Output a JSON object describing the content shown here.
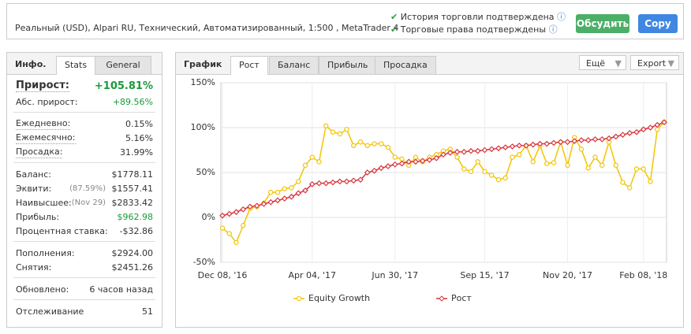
{
  "header": {
    "account_line": "Реальный (USD), Alpari RU, Технический, Автоматизированный, 1:500 , MetaTrader 4",
    "checks": [
      "История торговли подтверждена",
      "Торговые права подтверждены"
    ],
    "buttons": [
      "Обсудить",
      "Copy"
    ]
  },
  "info": {
    "tabs": [
      "Инфо.",
      "Stats",
      "General"
    ],
    "sections": [
      [
        {
          "label": "Прирост:",
          "value": "+105.81%"
        },
        {
          "label": "Абс. прирост:",
          "value": "+89.56%"
        }
      ],
      [
        {
          "label": "Ежедневно:",
          "value": "0.15%"
        },
        {
          "label": "Ежемесячно:",
          "value": "5.16%"
        },
        {
          "label": "Просадка:",
          "value": "31.99%"
        }
      ],
      [
        {
          "label": "Баланс:",
          "value": "$1778.11"
        },
        {
          "label": "Эквити:",
          "note": "(87.59%)",
          "value": "$1557.41"
        },
        {
          "label": "Наивысшее:",
          "note": "(Nov 29)",
          "value": "$2833.42"
        },
        {
          "label": "Прибыль:",
          "value": "$962.98"
        },
        {
          "label": "Процентная ставка:",
          "value": "-$32.86"
        }
      ],
      [
        {
          "label": "Пополнения:",
          "value": "$2924.00"
        },
        {
          "label": "Снятия:",
          "value": "$2451.26"
        }
      ],
      [
        {
          "label": "Обновлено:",
          "value": "6 часов назад"
        }
      ],
      [
        {
          "label": "Отслеживание",
          "value": "51"
        }
      ]
    ]
  },
  "chart_panel": {
    "tabs": [
      "График",
      "Рост",
      "Баланс",
      "Прибыль",
      "Просадка"
    ],
    "menus": [
      "Ещё",
      "Export"
    ]
  },
  "chart_data": {
    "type": "line",
    "categories": [
      "Dec 08, '16",
      null,
      null,
      null,
      null,
      null,
      null,
      null,
      null,
      null,
      null,
      null,
      null,
      "Apr 04, '17",
      null,
      null,
      null,
      null,
      null,
      null,
      null,
      null,
      null,
      null,
      null,
      "Jun 30, '17",
      null,
      null,
      null,
      null,
      null,
      null,
      null,
      null,
      null,
      null,
      null,
      null,
      "Sep 15, '17",
      null,
      null,
      null,
      null,
      null,
      null,
      null,
      null,
      null,
      null,
      null,
      "Nov 20, '17",
      null,
      null,
      null,
      null,
      null,
      null,
      null,
      null,
      null,
      null,
      "Feb 08, '18",
      null,
      null,
      null
    ],
    "series": [
      {
        "name": "Equity Growth",
        "color": "#f2c500",
        "values": [
          -12,
          -18,
          -28,
          -9,
          10,
          12,
          16,
          28,
          28,
          32,
          33,
          40,
          58,
          67,
          62,
          102,
          95,
          93,
          98,
          80,
          84,
          80,
          82,
          82,
          78,
          67,
          65,
          58,
          67,
          62,
          67,
          70,
          74,
          76,
          67,
          54,
          51,
          62,
          51,
          47,
          42,
          44,
          67,
          70,
          80,
          62,
          80,
          60,
          61,
          84,
          58,
          89,
          76,
          55,
          67,
          58,
          84,
          58,
          39,
          33,
          54,
          54,
          40,
          98,
          106
        ]
      },
      {
        "name": "Рост",
        "color": "#d9363e",
        "values": [
          2,
          4,
          6,
          9,
          12,
          13,
          15,
          17,
          19,
          21,
          23,
          27,
          30,
          37,
          38,
          38,
          39,
          40,
          40,
          41,
          42,
          50,
          52,
          55,
          57,
          59,
          60,
          62,
          62,
          63,
          64,
          66,
          70,
          72,
          73,
          73,
          74,
          74,
          75,
          76,
          77,
          78,
          79,
          80,
          80,
          81,
          82,
          82,
          83,
          84,
          84,
          85,
          86,
          86,
          87,
          87,
          88,
          90,
          92,
          94,
          95,
          98,
          100,
          103,
          106
        ]
      }
    ],
    "ylim": [
      -50,
      150
    ],
    "yticks": [
      {
        "value": -50,
        "label": "-50%"
      },
      {
        "value": 0,
        "label": "0%"
      },
      {
        "value": 50,
        "label": "50%"
      },
      {
        "value": 100,
        "label": "100%"
      },
      {
        "value": 150,
        "label": "150%"
      }
    ],
    "grid": true
  }
}
